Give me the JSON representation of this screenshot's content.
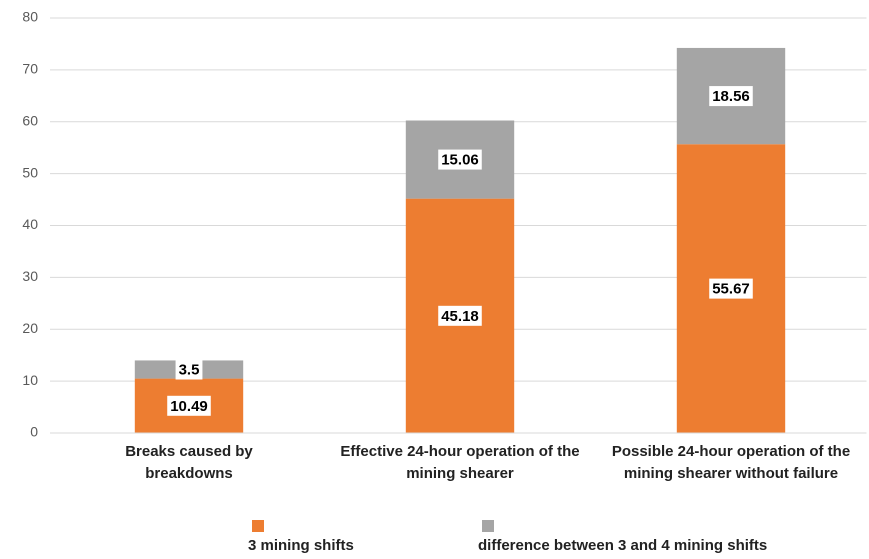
{
  "chart_data": {
    "type": "stacked_bar",
    "categories": [
      "Breaks caused by breakdowns",
      "Effective 24-hour operation of the mining shearer",
      "Possible 24-hour operation of the mining shearer without failure"
    ],
    "series": [
      {
        "name": "3 mining shifts",
        "color": "#ed7d31",
        "values": [
          10.49,
          45.18,
          55.67
        ]
      },
      {
        "name": "difference between 3 and 4 mining shifts",
        "color": "#a5a5a5",
        "values": [
          3.5,
          15.06,
          18.56
        ]
      }
    ],
    "ylim": [
      0,
      80
    ],
    "yticks": [
      0,
      10,
      20,
      30,
      40,
      50,
      60,
      70,
      80
    ],
    "grid": true,
    "legend": "bottom"
  }
}
